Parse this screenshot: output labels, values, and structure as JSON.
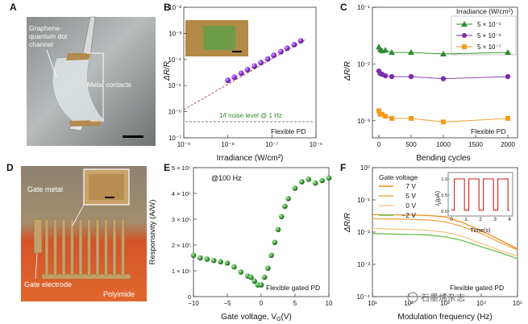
{
  "panels": {
    "A": {
      "letter": "A",
      "callout_channel": [
        "Graphene-",
        "quantum dot",
        "channel"
      ],
      "callout_contacts": "Metal contacts"
    },
    "B": {
      "letter": "B",
      "ylabel": "ΔR/R",
      "xlabel": "Irradiance (W/cm²)",
      "xticks": [
        "10⁻⁹",
        "10⁻⁸",
        "10⁻⁷",
        "10⁻⁶"
      ],
      "yticks": [
        "10⁻²",
        "10⁻³",
        "10⁻⁴",
        "10⁻⁵",
        "10⁻⁶",
        "10⁻⁷"
      ],
      "noise_label": "1/f noise level @ 1 Hz",
      "device_label": "Flexible PD"
    },
    "C": {
      "letter": "C",
      "ylabel": "ΔR/R",
      "xlabel": "Bending cycles",
      "xticks": [
        "0",
        "500",
        "1000",
        "1500",
        "2000"
      ],
      "yticks": [
        "10⁻¹",
        "10⁻²",
        "10⁻³"
      ],
      "legend_title": "Irradiance (W/cm²)",
      "legend": [
        "5 × 10⁻⁵",
        "5 × 10⁻⁶",
        "5 × 10⁻⁷"
      ],
      "device_label": "Flexible PD"
    },
    "D": {
      "letter": "D",
      "label_gate_metal": "Gate metal",
      "label_gate_electrode": "Gate electrode",
      "label_polyimide": "Polyimide"
    },
    "E": {
      "letter": "E",
      "ylabel": "Responsivity (A/W)",
      "xlabel": "Gate voltage, V",
      "xlabel_sub": "G",
      "xlabel_unit": "(V)",
      "xticks": [
        "−10",
        "−5",
        "0",
        "5",
        "10"
      ],
      "yticks": [
        "5 × 10⁵",
        "4 × 10⁵",
        "3 × 10⁵",
        "2 × 10⁵",
        "1 × 10⁵",
        "0"
      ],
      "freq_label": "@100 Hz",
      "device_label": "Flexible gated PD"
    },
    "F": {
      "letter": "F",
      "ylabel": "ΔR/R",
      "xlabel": "Modulation frequency (Hz)",
      "xticks": [
        "10¹",
        "10²",
        "10³",
        "10⁴",
        "10⁵"
      ],
      "yticks": [
        "10⁰",
        "10⁻¹",
        "10⁻²",
        "10⁻³",
        "10⁻⁴"
      ],
      "legend_title": "Gate voltage",
      "legend": [
        "7 V",
        "5 V",
        "0 V",
        "−2 V"
      ],
      "inset_ylabel": "I",
      "inset_ylabel_sub": "p",
      "inset_ylabel_unit": "(μA)",
      "inset_xlabel": "Time(s)",
      "inset_xticks": [
        "0",
        "1",
        "2",
        "3",
        "4"
      ],
      "inset_yticks": [
        "1.0",
        "0.5",
        "0.0"
      ],
      "device_label": "Flexible gated PD"
    }
  },
  "watermark": "石墨烯杂志",
  "colors": {
    "purple": "#7b2ea8",
    "green": "#2e8b2e",
    "orange": "#f39a1e",
    "red": "#d41f1f"
  },
  "chart_data": [
    {
      "panel": "B",
      "type": "scatter",
      "x_scale": "log",
      "y_scale": "log",
      "xlim": [
        1e-09,
        1e-06
      ],
      "ylim": [
        1e-07,
        0.01
      ],
      "series": [
        {
          "x": [
            1e-08,
            1.4e-08,
            2e-08,
            2.8e-08,
            4e-08,
            5.6e-08,
            8e-08,
            1.1e-07,
            1.6e-07,
            2.2e-07,
            3.2e-07,
            4.5e-07
          ],
          "y": [
            1.6e-05,
            2.1e-05,
            3e-05,
            4.1e-05,
            5.6e-05,
            7.6e-05,
            0.000105,
            0.000145,
            0.0002,
            0.00027,
            0.00037,
            0.00052
          ]
        }
      ],
      "fit_line": {
        "x": [
          1e-09,
          6e-07
        ],
        "y": [
          1.2e-06,
          0.0006
        ]
      },
      "noise_level": 4e-07
    },
    {
      "panel": "C",
      "type": "scatter",
      "y_scale": "log",
      "xlim": [
        -100,
        2150
      ],
      "ylim": [
        0.0005,
        0.1
      ],
      "series": [
        {
          "name": "5 × 10⁻⁵",
          "x": [
            0,
            20,
            50,
            100,
            200,
            500,
            1000,
            2000
          ],
          "y": [
            0.02,
            0.018,
            0.017,
            0.0175,
            0.016,
            0.016,
            0.015,
            0.016
          ]
        },
        {
          "name": "5 × 10⁻⁶",
          "x": [
            0,
            20,
            50,
            100,
            200,
            500,
            1000,
            2000
          ],
          "y": [
            0.0075,
            0.0068,
            0.0066,
            0.0062,
            0.006,
            0.006,
            0.0055,
            0.006
          ]
        },
        {
          "name": "5 × 10⁻⁷",
          "x": [
            0,
            20,
            50,
            100,
            200,
            500,
            1000,
            2000
          ],
          "y": [
            0.0015,
            0.0013,
            0.0013,
            0.0012,
            0.0011,
            0.0011,
            0.00095,
            0.0011
          ]
        }
      ]
    },
    {
      "panel": "E",
      "type": "scatter",
      "xlim": [
        -10,
        10
      ],
      "ylim": [
        0,
        500000
      ],
      "series": [
        {
          "x": [
            -10,
            -9,
            -8,
            -7,
            -6,
            -5,
            -4,
            -3,
            -2,
            -1.5,
            -1,
            -0.5,
            0,
            0.5,
            1,
            1.5,
            2,
            2.5,
            3,
            3.5,
            4,
            5,
            6,
            7,
            8,
            9,
            10
          ],
          "y": [
            160000,
            150000,
            145000,
            140000,
            135000,
            130000,
            115000,
            95000,
            80000,
            75000,
            60000,
            45000,
            45000,
            75000,
            110000,
            160000,
            210000,
            260000,
            310000,
            350000,
            380000,
            420000,
            445000,
            455000,
            440000,
            450000,
            460000
          ]
        }
      ]
    },
    {
      "panel": "F",
      "type": "line",
      "x_scale": "log",
      "y_scale": "log",
      "xlim": [
        10,
        100000
      ],
      "ylim": [
        0.0001,
        1
      ],
      "x": [
        10,
        100,
        300,
        1000,
        3000,
        10000,
        30000,
        100000
      ],
      "series": [
        {
          "name": "7 V",
          "values": [
            0.035,
            0.034,
            0.033,
            0.03,
            0.02,
            0.011,
            0.006,
            0.003
          ]
        },
        {
          "name": "5 V",
          "values": [
            0.026,
            0.025,
            0.024,
            0.021,
            0.015,
            0.009,
            0.005,
            0.0028
          ]
        },
        {
          "name": "0 V",
          "values": [
            0.013,
            0.012,
            0.0115,
            0.01,
            0.0075,
            0.0045,
            0.0028,
            0.0018
          ]
        },
        {
          "name": "−2 V",
          "values": [
            0.009,
            0.0085,
            0.0082,
            0.0072,
            0.0055,
            0.0035,
            0.0024,
            0.0015
          ]
        }
      ]
    }
  ]
}
